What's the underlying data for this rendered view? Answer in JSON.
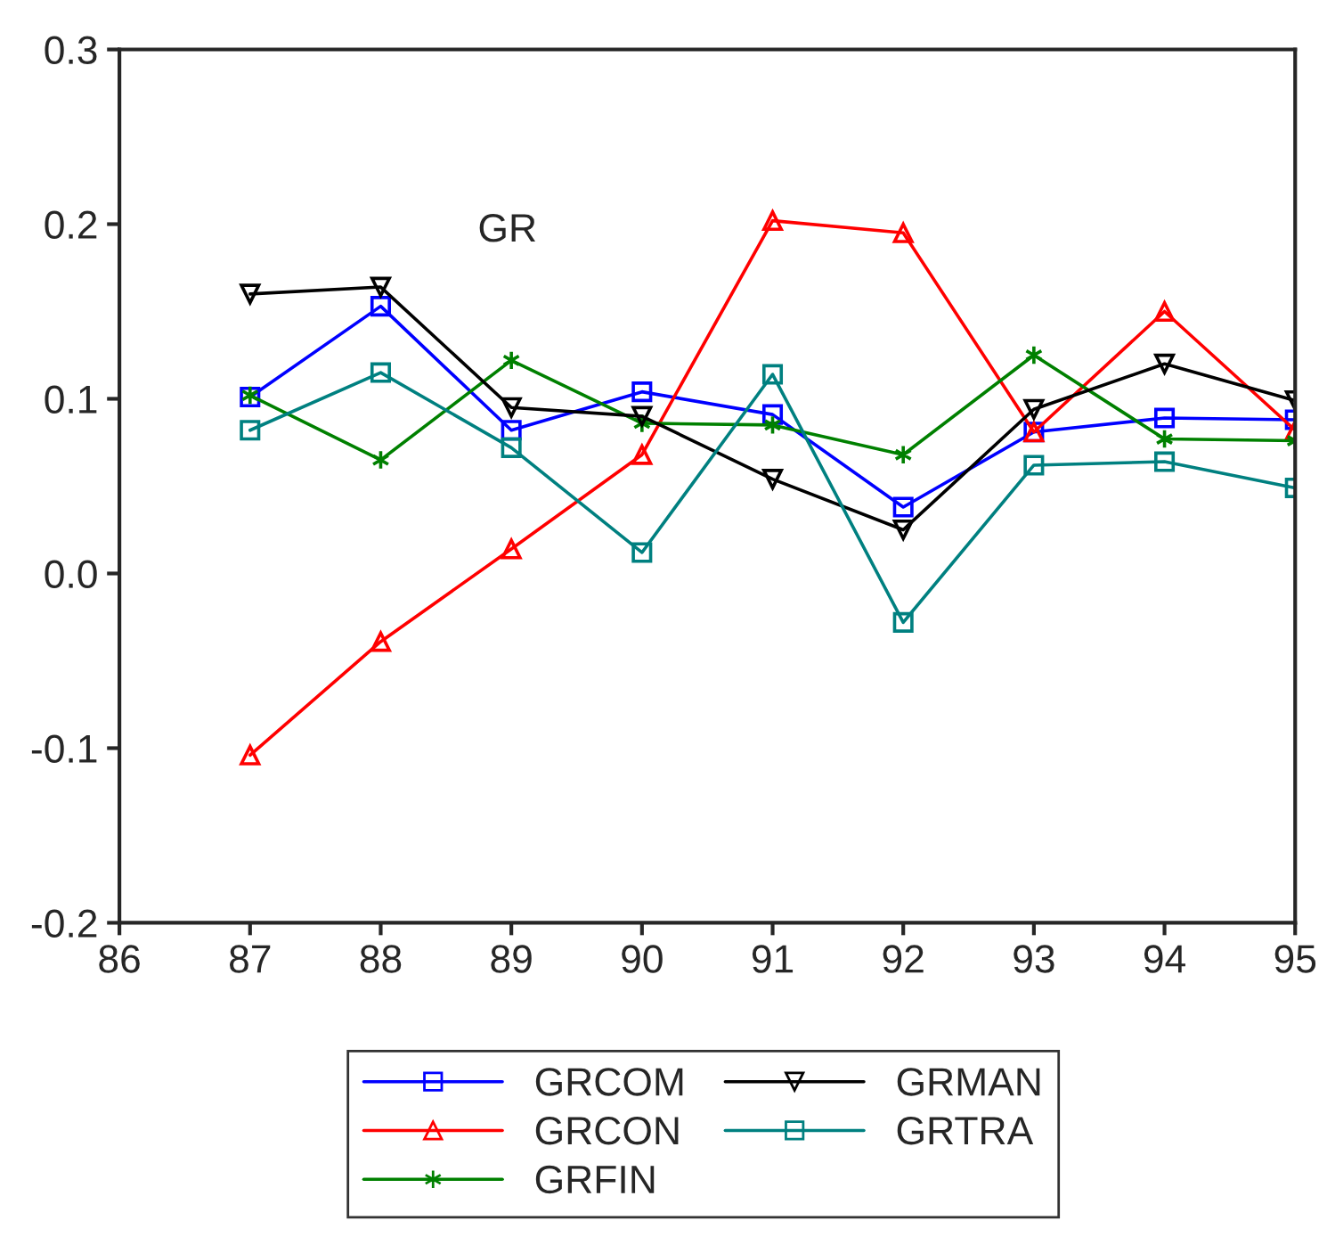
{
  "chart_data": {
    "type": "line",
    "annotations": [
      "GR"
    ],
    "x": [
      87,
      88,
      89,
      90,
      91,
      92,
      93,
      94,
      95
    ],
    "xlim": [
      86,
      95
    ],
    "xticks": [
      86,
      87,
      88,
      89,
      90,
      91,
      92,
      93,
      94,
      95
    ],
    "ylim": [
      -0.2,
      0.3
    ],
    "yticks": [
      {
        "value": -0.2,
        "label": "-0.2"
      },
      {
        "value": -0.1,
        "label": "-0.1"
      },
      {
        "value": 0.0,
        "label": "0.0"
      },
      {
        "value": 0.1,
        "label": "0.1"
      },
      {
        "value": 0.2,
        "label": "0.2"
      },
      {
        "value": 0.3,
        "label": "0.3"
      }
    ],
    "grid": false,
    "legend": "bottom",
    "line_style": "solid",
    "series": [
      {
        "name": "GRCOM",
        "color": "#0000ff",
        "marker": "square",
        "values": [
          0.101,
          0.153,
          0.082,
          0.104,
          0.091,
          0.038,
          0.081,
          0.089,
          0.088
        ]
      },
      {
        "name": "GRCON",
        "color": "#ff0000",
        "marker": "triangle",
        "values": [
          -0.104,
          -0.039,
          0.014,
          0.068,
          0.202,
          0.195,
          0.081,
          0.15,
          0.082
        ]
      },
      {
        "name": "GRFIN",
        "color": "#008000",
        "marker": "cross",
        "values": [
          0.102,
          0.065,
          0.122,
          0.086,
          0.085,
          0.068,
          0.125,
          0.077,
          0.076
        ]
      },
      {
        "name": "GRMAN",
        "color": "#000000",
        "marker": "triangle_down",
        "values": [
          0.16,
          0.164,
          0.095,
          0.09,
          0.054,
          0.025,
          0.094,
          0.12,
          0.099
        ]
      },
      {
        "name": "GRTRA",
        "color": "#008080",
        "marker": "square",
        "values": [
          0.082,
          0.115,
          0.072,
          0.012,
          0.114,
          -0.028,
          0.062,
          0.064,
          0.049
        ]
      }
    ]
  }
}
